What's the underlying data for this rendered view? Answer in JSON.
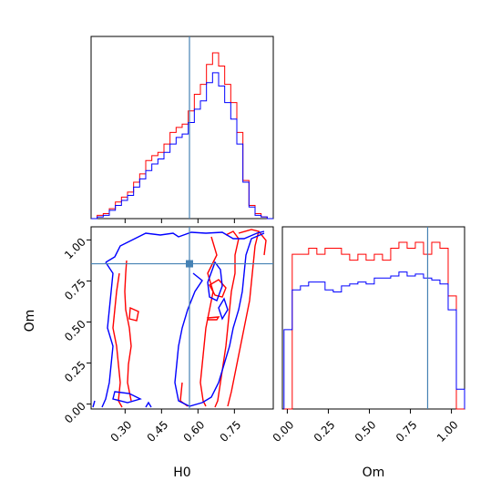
{
  "chart_data": {
    "type": "corner",
    "parameters": [
      "H0",
      "Om"
    ],
    "truth": {
      "H0": 0.565,
      "Om": 0.855
    },
    "colors": {
      "red": "#ff0000",
      "blue": "#0000ff",
      "truth": "#4682b4"
    },
    "panels": {
      "hist_H0": {
        "type": "histogram",
        "xlim": [
          0.16,
          0.91
        ],
        "bin_edges": [
          0.16,
          0.185,
          0.21,
          0.235,
          0.26,
          0.285,
          0.31,
          0.335,
          0.36,
          0.385,
          0.41,
          0.435,
          0.46,
          0.485,
          0.51,
          0.535,
          0.56,
          0.585,
          0.61,
          0.635,
          0.66,
          0.685,
          0.71,
          0.735,
          0.76,
          0.785,
          0.81,
          0.835,
          0.86,
          0.885,
          0.91
        ],
        "series": [
          {
            "name": "red",
            "values": [
              0,
              2,
              3,
              6,
              10,
              13,
              16,
              22,
              27,
              35,
              38,
              40,
              45,
              52,
              55,
              57,
              65,
              75,
              81,
              93,
              100,
              92,
              81,
              70,
              52,
              23,
              8,
              3,
              1,
              0
            ]
          },
          {
            "name": "blue",
            "values": [
              0,
              1,
              2,
              5,
              8,
              11,
              14,
              19,
              24,
              29,
              33,
              36,
              40,
              45,
              49,
              51,
              58,
              66,
              71,
              82,
              88,
              80,
              70,
              60,
              45,
              22,
              7,
              2,
              1,
              0
            ]
          }
        ]
      },
      "hist_Om": {
        "type": "histogram",
        "xlim": [
          -0.03,
          1.08
        ],
        "bin_edges": [
          -0.02,
          0.03,
          0.08,
          0.13,
          0.18,
          0.23,
          0.28,
          0.33,
          0.38,
          0.43,
          0.48,
          0.53,
          0.58,
          0.63,
          0.68,
          0.73,
          0.78,
          0.83,
          0.88,
          0.93,
          0.98,
          1.03,
          1.08
        ],
        "series": [
          {
            "name": "red",
            "values": [
              0,
              78,
              78,
              81,
              78,
              81,
              81,
              78,
              75,
              78,
              75,
              78,
              75,
              81,
              84,
              81,
              84,
              78,
              84,
              81,
              57,
              0
            ]
          },
          {
            "name": "blue",
            "values": [
              40,
              60,
              62,
              64,
              64,
              60,
              59,
              62,
              63,
              64,
              63,
              66,
              66,
              67,
              69,
              67,
              68,
              66,
              65,
              63,
              50,
              10
            ]
          }
        ]
      },
      "contour": {
        "type": "contour",
        "xlim": [
          0.16,
          0.91
        ],
        "ylim": [
          -0.03,
          1.08
        ],
        "xticks": [
          0.3,
          0.45,
          0.6,
          0.75
        ],
        "yticks": [
          0.0,
          0.25,
          0.5,
          0.75,
          1.0
        ],
        "xlabel": "H0",
        "ylabel": "Om"
      }
    },
    "tick_labels": {
      "H0": [
        "0.30",
        "0.45",
        "0.60",
        "0.75"
      ],
      "Om_y": [
        "0.00",
        "0.25",
        "0.50",
        "0.75",
        "1.00"
      ],
      "Om_x": [
        "0.00",
        "0.25",
        "0.50",
        "0.75",
        "1.00"
      ]
    }
  }
}
